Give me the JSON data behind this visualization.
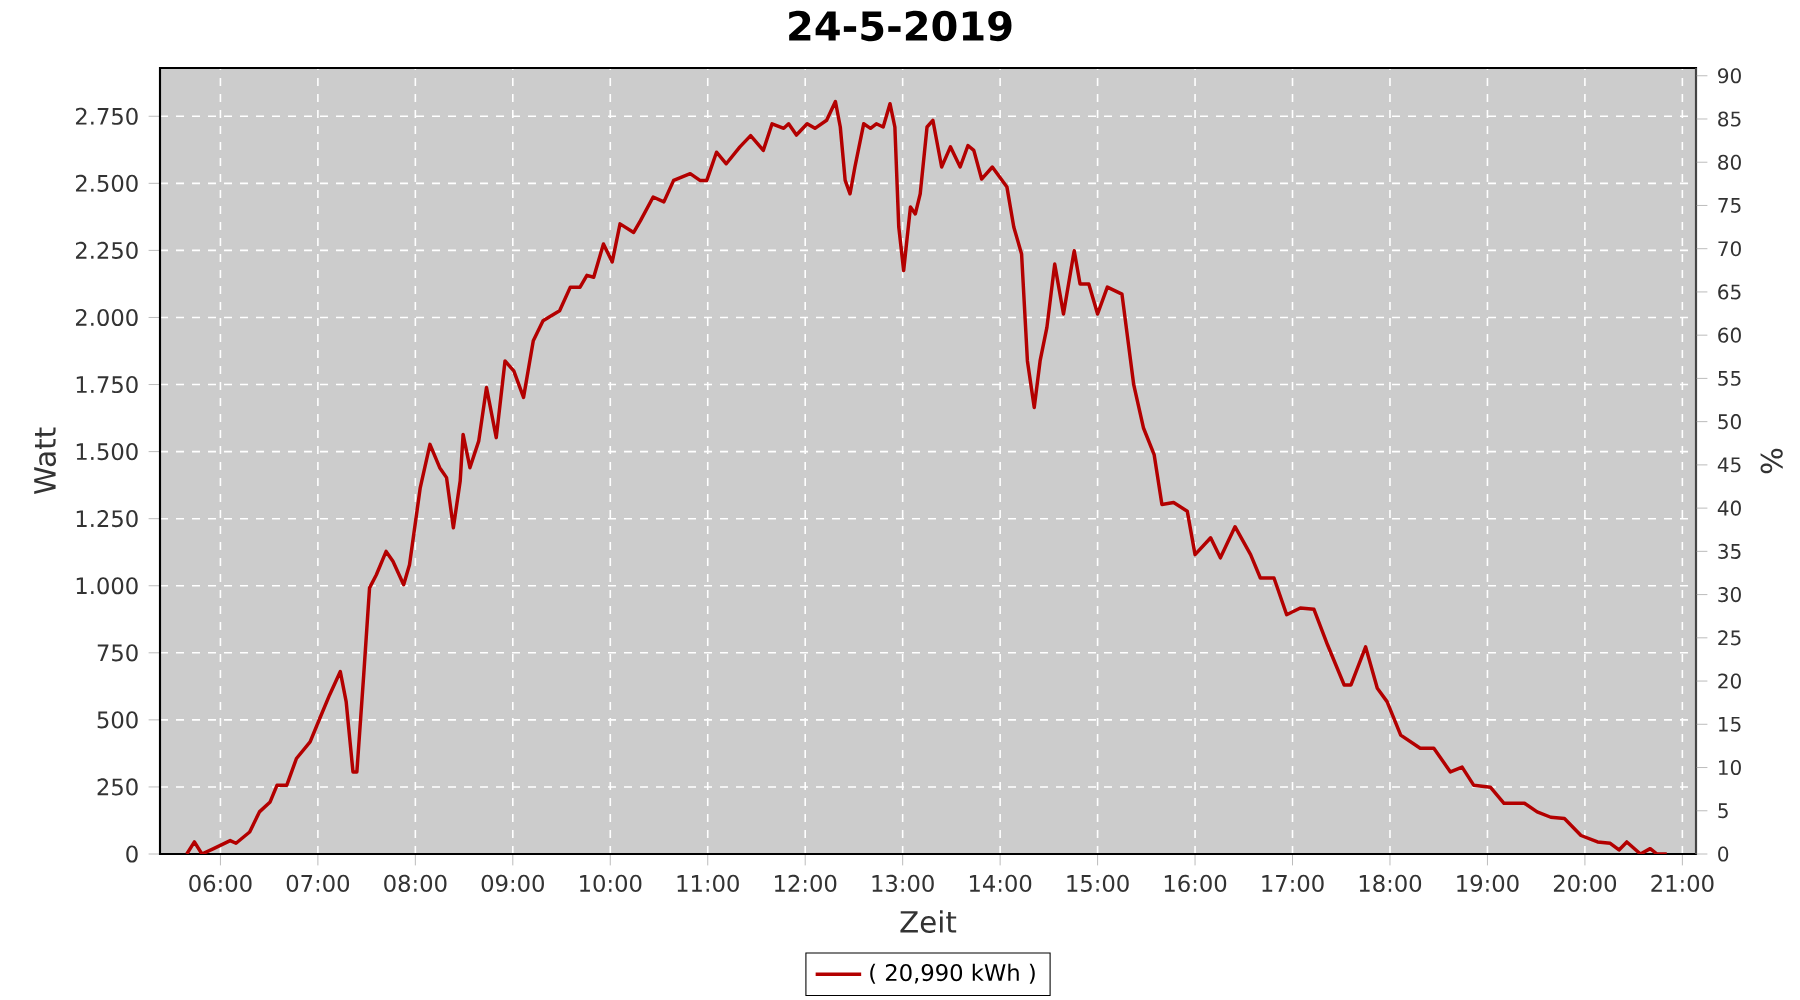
{
  "chart_data": {
    "type": "line",
    "title": "24-5-2019",
    "xlabel": "Zeit",
    "ylabel": "Watt",
    "y2label": "%",
    "x": [
      5.655,
      5.733,
      5.81,
      5.93,
      6.1,
      6.16,
      6.3,
      6.4,
      6.51,
      6.58,
      6.68,
      6.78,
      6.92,
      7.02,
      7.12,
      7.23,
      7.29,
      7.36,
      7.4,
      7.47,
      7.53,
      7.6,
      7.7,
      7.77,
      7.88,
      7.94,
      8.05,
      8.15,
      8.25,
      8.32,
      8.39,
      8.46,
      8.49,
      8.56,
      8.65,
      8.73,
      8.83,
      8.92,
      9.01,
      9.11,
      9.21,
      9.31,
      9.48,
      9.59,
      9.69,
      9.76,
      9.83,
      9.93,
      10.02,
      10.1,
      10.24,
      10.31,
      10.44,
      10.55,
      10.65,
      10.82,
      10.92,
      10.99,
      11.09,
      11.19,
      11.33,
      11.44,
      11.57,
      11.66,
      11.78,
      11.83,
      11.91,
      12.02,
      12.1,
      12.22,
      12.31,
      12.36,
      12.41,
      12.46,
      12.51,
      12.6,
      12.67,
      12.73,
      12.8,
      12.87,
      12.92,
      12.96,
      13.01,
      13.08,
      13.13,
      13.18,
      13.25,
      13.31,
      13.4,
      13.49,
      13.59,
      13.67,
      13.73,
      13.81,
      13.92,
      14.07,
      14.14,
      14.22,
      14.28,
      14.35,
      14.41,
      14.48,
      14.56,
      14.65,
      14.76,
      14.82,
      14.91,
      15.0,
      15.1,
      15.25,
      15.37,
      15.47,
      15.58,
      15.66,
      15.78,
      15.92,
      16.0,
      16.16,
      16.26,
      16.41,
      16.57,
      16.67,
      16.81,
      16.94,
      17.08,
      17.22,
      17.36,
      17.53,
      17.6,
      17.75,
      17.87,
      17.97,
      18.11,
      18.31,
      18.45,
      18.62,
      18.74,
      18.86,
      19.03,
      19.17,
      19.38,
      19.51,
      19.65,
      19.79,
      19.96,
      20.13,
      20.26,
      20.35,
      20.43,
      20.57,
      20.67,
      20.74,
      20.84
    ],
    "series": [
      {
        "name": "( 20,990 kWh )",
        "color": "#b30000",
        "values": [
          0,
          45,
          0,
          20,
          50,
          40,
          82,
          157,
          194,
          256,
          256,
          356,
          418,
          506,
          593,
          680,
          568,
          306,
          306,
          667,
          992,
          1041,
          1128,
          1091,
          1004,
          1078,
          1365,
          1527,
          1440,
          1403,
          1216,
          1390,
          1564,
          1440,
          1539,
          1739,
          1552,
          1838,
          1801,
          1702,
          1913,
          1988,
          2025,
          2113,
          2113,
          2157,
          2150,
          2274,
          2207,
          2349,
          2317,
          2361,
          2449,
          2431,
          2511,
          2536,
          2511,
          2511,
          2616,
          2573,
          2636,
          2678,
          2623,
          2722,
          2705,
          2722,
          2680,
          2722,
          2705,
          2735,
          2805,
          2710,
          2511,
          2461,
          2561,
          2722,
          2705,
          2722,
          2710,
          2797,
          2710,
          2337,
          2175,
          2412,
          2386,
          2461,
          2710,
          2735,
          2561,
          2636,
          2561,
          2641,
          2623,
          2516,
          2561,
          2486,
          2337,
          2237,
          1838,
          1664,
          1838,
          1963,
          2199,
          2013,
          2249,
          2125,
          2125,
          2013,
          2113,
          2087,
          1751,
          1589,
          1489,
          1303,
          1310,
          1278,
          1116,
          1179,
          1104,
          1220,
          1116,
          1029,
          1029,
          892,
          917,
          912,
          779,
          630,
          630,
          772,
          618,
          568,
          443,
          394,
          394,
          306,
          324,
          256,
          249,
          189,
          189,
          157,
          137,
          132,
          69,
          45,
          40,
          15,
          45,
          0,
          20,
          0,
          0
        ]
      }
    ],
    "xlim": [
      5.38,
      21.14
    ],
    "ylim": [
      0,
      2930
    ],
    "y2lim": [
      0,
      90.9
    ],
    "xticks": [
      {
        "value": 6,
        "label": "06:00"
      },
      {
        "value": 7,
        "label": "07:00"
      },
      {
        "value": 8,
        "label": "08:00"
      },
      {
        "value": 9,
        "label": "09:00"
      },
      {
        "value": 10,
        "label": "10:00"
      },
      {
        "value": 11,
        "label": "11:00"
      },
      {
        "value": 12,
        "label": "12:00"
      },
      {
        "value": 13,
        "label": "13:00"
      },
      {
        "value": 14,
        "label": "14:00"
      },
      {
        "value": 15,
        "label": "15:00"
      },
      {
        "value": 16,
        "label": "16:00"
      },
      {
        "value": 17,
        "label": "17:00"
      },
      {
        "value": 18,
        "label": "18:00"
      },
      {
        "value": 19,
        "label": "19:00"
      },
      {
        "value": 20,
        "label": "20:00"
      },
      {
        "value": 21,
        "label": "21:00"
      }
    ],
    "yticks": [
      0,
      250,
      500,
      750,
      {
        "value": 1000,
        "label": "1.000"
      },
      {
        "value": 1250,
        "label": "1.250"
      },
      {
        "value": 1500,
        "label": "1.500"
      },
      {
        "value": 1750,
        "label": "1.750"
      },
      {
        "value": 2000,
        "label": "2.000"
      },
      {
        "value": 2250,
        "label": "2.250"
      },
      {
        "value": 2500,
        "label": "2.500"
      },
      {
        "value": 2750,
        "label": "2.750"
      }
    ],
    "y2ticks": [
      0,
      5,
      10,
      15,
      20,
      25,
      30,
      35,
      40,
      45,
      50,
      55,
      60,
      65,
      70,
      75,
      80,
      85,
      90
    ],
    "grid": true,
    "legend": "bottom"
  }
}
